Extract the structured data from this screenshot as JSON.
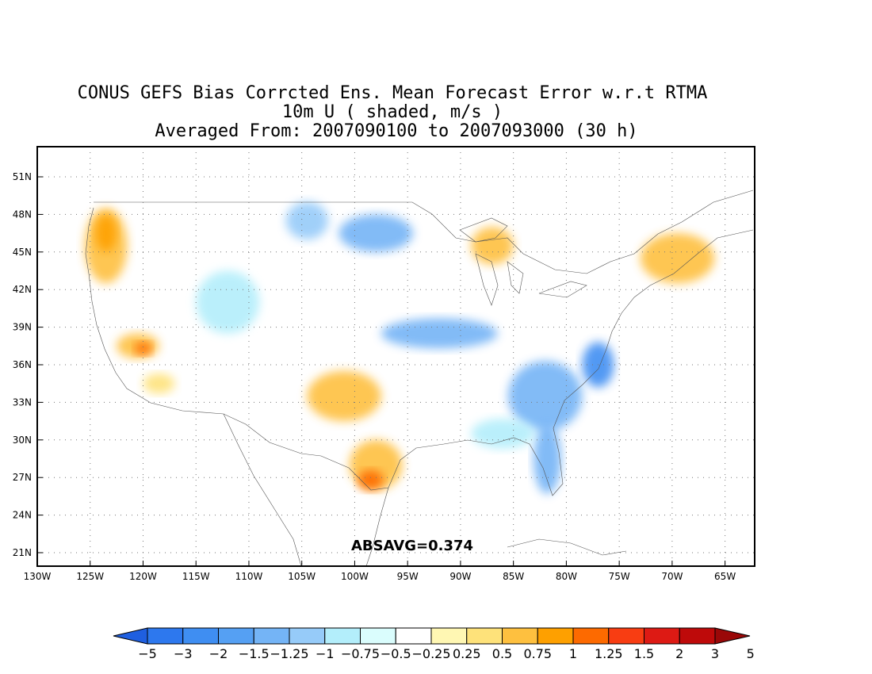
{
  "title": {
    "line1": "CONUS GEFS Bias Corrcted Ens. Mean Forecast Error w.r.t RTMA",
    "line2": "10m U ( shaded, m/s )",
    "line3": "Averaged From: 2007090100 to 2007093000 (30 h)"
  },
  "annotation": "ABSAVG=0.374",
  "axes": {
    "lat_labels": [
      "51N",
      "48N",
      "45N",
      "42N",
      "39N",
      "36N",
      "33N",
      "30N",
      "27N",
      "24N",
      "21N"
    ],
    "lat_values": [
      51,
      48,
      45,
      42,
      39,
      36,
      33,
      30,
      27,
      24,
      21
    ],
    "lon_labels": [
      "130W",
      "125W",
      "120W",
      "115W",
      "110W",
      "105W",
      "100W",
      "95W",
      "90W",
      "85W",
      "80W",
      "75W",
      "70W",
      "65W"
    ],
    "lon_values": [
      -130,
      -125,
      -120,
      -115,
      -110,
      -105,
      -100,
      -95,
      -90,
      -85,
      -80,
      -75,
      -70,
      -65
    ],
    "grid": true
  },
  "colorbar": {
    "labels": [
      "-5",
      "-3",
      "-2",
      "-1.5",
      "-1.25",
      "-1",
      "-0.75",
      "-0.5",
      "-0.25",
      "0.25",
      "0.5",
      "0.75",
      "1",
      "1.25",
      "1.5",
      "2",
      "3",
      "5"
    ],
    "colors": [
      "#1f5fe0",
      "#2d78ee",
      "#3f8ef2",
      "#55a0f3",
      "#74b4f6",
      "#96cbf9",
      "#b3eefb",
      "#dafdfd",
      "#ffffff",
      "#fff7b3",
      "#fee27a",
      "#fec03f",
      "#fea000",
      "#fd6a00",
      "#f83d12",
      "#dd1a14",
      "#be0a0a",
      "#9a0808"
    ]
  },
  "regions": [
    {
      "name": "pacific-northwest-positive",
      "color": "#fec03f",
      "lon": -123.5,
      "lat": 45.5,
      "rx": 2.0,
      "ry": 3.0
    },
    {
      "name": "pacific-northwest-core",
      "color": "#fea000",
      "lon": -123.5,
      "lat": 46.5,
      "rx": 1.0,
      "ry": 1.5
    },
    {
      "name": "central-california-positive",
      "color": "#fec03f",
      "lon": -120.5,
      "lat": 37.5,
      "rx": 2.0,
      "ry": 1.0
    },
    {
      "name": "central-california-core",
      "color": "#fd6a00",
      "lon": -120.0,
      "lat": 37.3,
      "rx": 0.8,
      "ry": 0.5
    },
    {
      "name": "southern-california-positive",
      "color": "#fee27a",
      "lon": -118.5,
      "lat": 34.5,
      "rx": 1.5,
      "ry": 0.8
    },
    {
      "name": "northern-rockies-negative",
      "color": "#96cbf9",
      "lon": -104.5,
      "lat": 47.5,
      "rx": 2.0,
      "ry": 1.5
    },
    {
      "name": "northern-plains-negative",
      "color": "#74b4f6",
      "lon": -98.0,
      "lat": 46.5,
      "rx": 3.5,
      "ry": 1.5
    },
    {
      "name": "great-basin-negative",
      "color": "#b3eefb",
      "lon": -112.0,
      "lat": 41.0,
      "rx": 3.0,
      "ry": 2.5
    },
    {
      "name": "southern-plains-positive",
      "color": "#fec03f",
      "lon": -101.0,
      "lat": 33.5,
      "rx": 3.5,
      "ry": 2.0
    },
    {
      "name": "south-texas-positive",
      "color": "#fec03f",
      "lon": -98.0,
      "lat": 28.0,
      "rx": 2.5,
      "ry": 2.0
    },
    {
      "name": "south-texas-core",
      "color": "#fd6a00",
      "lon": -98.5,
      "lat": 26.8,
      "rx": 1.2,
      "ry": 0.8
    },
    {
      "name": "central-plains-negative",
      "color": "#74b4f6",
      "lon": -92.0,
      "lat": 38.5,
      "rx": 5.5,
      "ry": 1.2
    },
    {
      "name": "southeast-negative",
      "color": "#74b4f6",
      "lon": -82.0,
      "lat": 33.5,
      "rx": 3.5,
      "ry": 2.8
    },
    {
      "name": "mid-atlantic-negative",
      "color": "#3f8ef2",
      "lon": -77.0,
      "lat": 36.0,
      "rx": 1.5,
      "ry": 1.8
    },
    {
      "name": "florida-negative",
      "color": "#74b4f6",
      "lon": -81.8,
      "lat": 28.5,
      "rx": 1.3,
      "ry": 2.8
    },
    {
      "name": "upper-michigan-positive",
      "color": "#fec03f",
      "lon": -87.0,
      "lat": 45.5,
      "rx": 2.0,
      "ry": 1.5
    },
    {
      "name": "new-england-positive",
      "color": "#fec03f",
      "lon": -69.5,
      "lat": 44.5,
      "rx": 3.5,
      "ry": 2.0
    },
    {
      "name": "gulf-coast-negative",
      "color": "#b3eefb",
      "lon": -86.0,
      "lat": 30.5,
      "rx": 3.0,
      "ry": 1.2
    }
  ]
}
